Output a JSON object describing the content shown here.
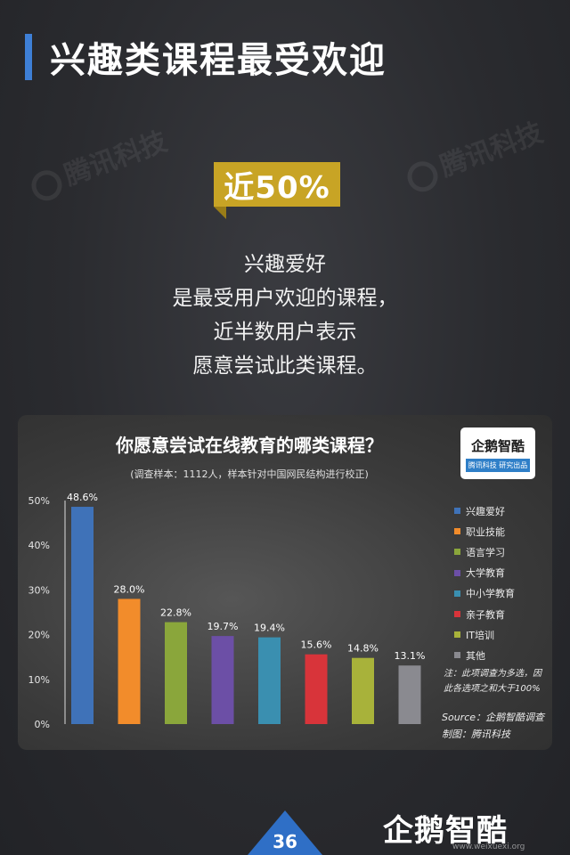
{
  "header": {
    "title": "兴趣类课程最受欢迎"
  },
  "watermark": "腾讯科技",
  "badge": "近50%",
  "description": [
    "兴趣爱好",
    "是最受用户欢迎的课程，",
    "近半数用户表示",
    "愿意尝试此类课程。"
  ],
  "logo": {
    "name": "企鹅智酷",
    "tag": "腾讯科技 研究出品"
  },
  "note": [
    "注：此项调查为多选，因",
    "此各选项之和大于100%"
  ],
  "source": [
    "Source：企鹅智酷调查",
    "制图：腾讯科技"
  ],
  "page_number": "36",
  "corner_brand": "企鹅智酷",
  "corner_site": "www.weixuexi.org",
  "chart_data": {
    "type": "bar",
    "title": "你愿意尝试在线教育的哪类课程？",
    "subtitle": "(调查样本：1112人，样本针对中国网民结构进行校正)",
    "categories": [
      "兴趣爱好",
      "职业技能",
      "语言学习",
      "大学教育",
      "中小学教育",
      "亲子教育",
      "IT培训",
      "其他"
    ],
    "values": [
      48.6,
      28.0,
      22.8,
      19.7,
      19.4,
      15.6,
      14.8,
      13.1
    ],
    "value_labels": [
      "48.6%",
      "28.0%",
      "22.8%",
      "19.7%",
      "19.4%",
      "15.6%",
      "14.8%",
      "13.1%"
    ],
    "colors": [
      "#3f72b8",
      "#f28c2b",
      "#8aa63b",
      "#6c4fa6",
      "#3a8fb0",
      "#d8343a",
      "#a8b23a",
      "#8a8a90"
    ],
    "ylim": [
      0,
      50
    ],
    "yticks": [
      "0%",
      "10%",
      "20%",
      "30%",
      "40%",
      "50%"
    ],
    "legend_position": "right",
    "grid": false
  }
}
